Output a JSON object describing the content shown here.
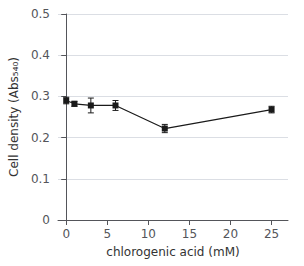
{
  "chart_data": {
    "type": "line",
    "xlabel": "chlorogenic acid (mM)",
    "ylabel": "Cell density (Abs₅₄₀)",
    "x": [
      0,
      1,
      3,
      6,
      12,
      25
    ],
    "values": [
      0.29,
      0.282,
      0.278,
      0.278,
      0.222,
      0.268
    ],
    "yerr": [
      0.008,
      0.006,
      0.018,
      0.012,
      0.01,
      0.008
    ],
    "xlim": [
      -1,
      27
    ],
    "ylim": [
      0,
      0.5
    ],
    "xticks": [
      0,
      5,
      10,
      15,
      20,
      25
    ],
    "yticks": [
      0,
      0.1,
      0.2,
      0.3,
      0.4,
      0.5
    ],
    "color": "#1a1a1a",
    "marker": "square",
    "grid": true
  }
}
